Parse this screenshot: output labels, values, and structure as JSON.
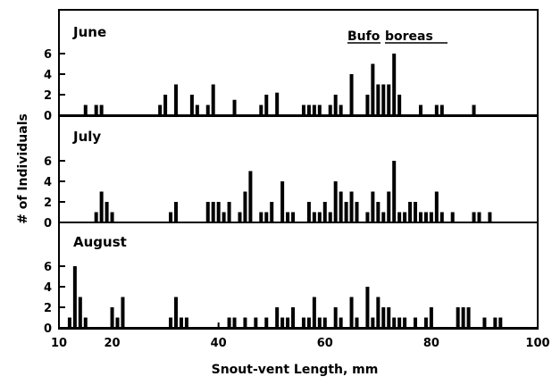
{
  "chart_data": {
    "type": "bar",
    "annotation": {
      "words": [
        "Bufo",
        "boreas"
      ]
    },
    "xlabel": "Snout-vent Length, mm",
    "ylabel": "# of Individuals",
    "xlim": [
      10,
      100
    ],
    "xticks": [
      10,
      20,
      40,
      60,
      80,
      100
    ],
    "ylim": [
      0,
      7
    ],
    "yticks": [
      0,
      2,
      4,
      6
    ],
    "grid": false,
    "bar_color": "#000000",
    "panels": [
      {
        "name": "June",
        "points": [
          {
            "x": 15,
            "y": 1
          },
          {
            "x": 17,
            "y": 1
          },
          {
            "x": 18,
            "y": 1
          },
          {
            "x": 29,
            "y": 1
          },
          {
            "x": 30,
            "y": 2
          },
          {
            "x": 32,
            "y": 3
          },
          {
            "x": 35,
            "y": 2
          },
          {
            "x": 36,
            "y": 1
          },
          {
            "x": 38,
            "y": 1
          },
          {
            "x": 39,
            "y": 3
          },
          {
            "x": 43,
            "y": 1.5
          },
          {
            "x": 48,
            "y": 1
          },
          {
            "x": 49,
            "y": 2
          },
          {
            "x": 51,
            "y": 2.2
          },
          {
            "x": 56,
            "y": 1
          },
          {
            "x": 57,
            "y": 1
          },
          {
            "x": 58,
            "y": 1
          },
          {
            "x": 59,
            "y": 1
          },
          {
            "x": 61,
            "y": 1
          },
          {
            "x": 62,
            "y": 2
          },
          {
            "x": 63,
            "y": 1
          },
          {
            "x": 65,
            "y": 4
          },
          {
            "x": 68,
            "y": 2
          },
          {
            "x": 69,
            "y": 5
          },
          {
            "x": 70,
            "y": 3
          },
          {
            "x": 71,
            "y": 3
          },
          {
            "x": 72,
            "y": 3
          },
          {
            "x": 73,
            "y": 6
          },
          {
            "x": 74,
            "y": 2
          },
          {
            "x": 78,
            "y": 1
          },
          {
            "x": 81,
            "y": 1
          },
          {
            "x": 82,
            "y": 1
          },
          {
            "x": 88,
            "y": 1
          }
        ]
      },
      {
        "name": "July",
        "points": [
          {
            "x": 17,
            "y": 1
          },
          {
            "x": 18,
            "y": 3
          },
          {
            "x": 19,
            "y": 2
          },
          {
            "x": 20,
            "y": 1
          },
          {
            "x": 31,
            "y": 1
          },
          {
            "x": 32,
            "y": 2
          },
          {
            "x": 38,
            "y": 2
          },
          {
            "x": 39,
            "y": 2
          },
          {
            "x": 40,
            "y": 2
          },
          {
            "x": 41,
            "y": 1
          },
          {
            "x": 42,
            "y": 2
          },
          {
            "x": 44,
            "y": 1
          },
          {
            "x": 45,
            "y": 3
          },
          {
            "x": 46,
            "y": 5
          },
          {
            "x": 48,
            "y": 1
          },
          {
            "x": 49,
            "y": 1
          },
          {
            "x": 50,
            "y": 2
          },
          {
            "x": 52,
            "y": 4
          },
          {
            "x": 53,
            "y": 1
          },
          {
            "x": 54,
            "y": 1
          },
          {
            "x": 57,
            "y": 2
          },
          {
            "x": 58,
            "y": 1
          },
          {
            "x": 59,
            "y": 1
          },
          {
            "x": 60,
            "y": 2
          },
          {
            "x": 61,
            "y": 1
          },
          {
            "x": 62,
            "y": 4
          },
          {
            "x": 63,
            "y": 3
          },
          {
            "x": 64,
            "y": 2
          },
          {
            "x": 65,
            "y": 3
          },
          {
            "x": 66,
            "y": 2
          },
          {
            "x": 68,
            "y": 1
          },
          {
            "x": 69,
            "y": 3
          },
          {
            "x": 70,
            "y": 2
          },
          {
            "x": 71,
            "y": 1
          },
          {
            "x": 72,
            "y": 3
          },
          {
            "x": 73,
            "y": 6
          },
          {
            "x": 74,
            "y": 1
          },
          {
            "x": 75,
            "y": 1
          },
          {
            "x": 76,
            "y": 2
          },
          {
            "x": 77,
            "y": 2
          },
          {
            "x": 78,
            "y": 1
          },
          {
            "x": 79,
            "y": 1
          },
          {
            "x": 80,
            "y": 1
          },
          {
            "x": 81,
            "y": 3
          },
          {
            "x": 82,
            "y": 1
          },
          {
            "x": 84,
            "y": 1
          },
          {
            "x": 88,
            "y": 1
          },
          {
            "x": 89,
            "y": 1
          },
          {
            "x": 91,
            "y": 1
          }
        ]
      },
      {
        "name": "August",
        "points": [
          {
            "x": 12,
            "y": 1
          },
          {
            "x": 13,
            "y": 6
          },
          {
            "x": 14,
            "y": 3
          },
          {
            "x": 15,
            "y": 1
          },
          {
            "x": 20,
            "y": 2
          },
          {
            "x": 21,
            "y": 1
          },
          {
            "x": 22,
            "y": 3
          },
          {
            "x": 31,
            "y": 1
          },
          {
            "x": 32,
            "y": 3
          },
          {
            "x": 33,
            "y": 1
          },
          {
            "x": 34,
            "y": 1
          },
          {
            "x": 42,
            "y": 1
          },
          {
            "x": 43,
            "y": 1
          },
          {
            "x": 45,
            "y": 1
          },
          {
            "x": 47,
            "y": 1
          },
          {
            "x": 49,
            "y": 1
          },
          {
            "x": 51,
            "y": 2
          },
          {
            "x": 52,
            "y": 1
          },
          {
            "x": 53,
            "y": 1
          },
          {
            "x": 54,
            "y": 2
          },
          {
            "x": 56,
            "y": 1
          },
          {
            "x": 57,
            "y": 1
          },
          {
            "x": 58,
            "y": 3
          },
          {
            "x": 59,
            "y": 1
          },
          {
            "x": 60,
            "y": 1
          },
          {
            "x": 62,
            "y": 2
          },
          {
            "x": 63,
            "y": 1
          },
          {
            "x": 65,
            "y": 3
          },
          {
            "x": 66,
            "y": 1
          },
          {
            "x": 68,
            "y": 4
          },
          {
            "x": 69,
            "y": 1
          },
          {
            "x": 70,
            "y": 3
          },
          {
            "x": 71,
            "y": 2
          },
          {
            "x": 72,
            "y": 2
          },
          {
            "x": 73,
            "y": 1
          },
          {
            "x": 74,
            "y": 1
          },
          {
            "x": 75,
            "y": 1
          },
          {
            "x": 77,
            "y": 1
          },
          {
            "x": 79,
            "y": 1
          },
          {
            "x": 80,
            "y": 2
          },
          {
            "x": 85,
            "y": 2
          },
          {
            "x": 86,
            "y": 2
          },
          {
            "x": 87,
            "y": 2
          },
          {
            "x": 90,
            "y": 1
          },
          {
            "x": 92,
            "y": 1
          },
          {
            "x": 93,
            "y": 1
          }
        ]
      }
    ]
  }
}
